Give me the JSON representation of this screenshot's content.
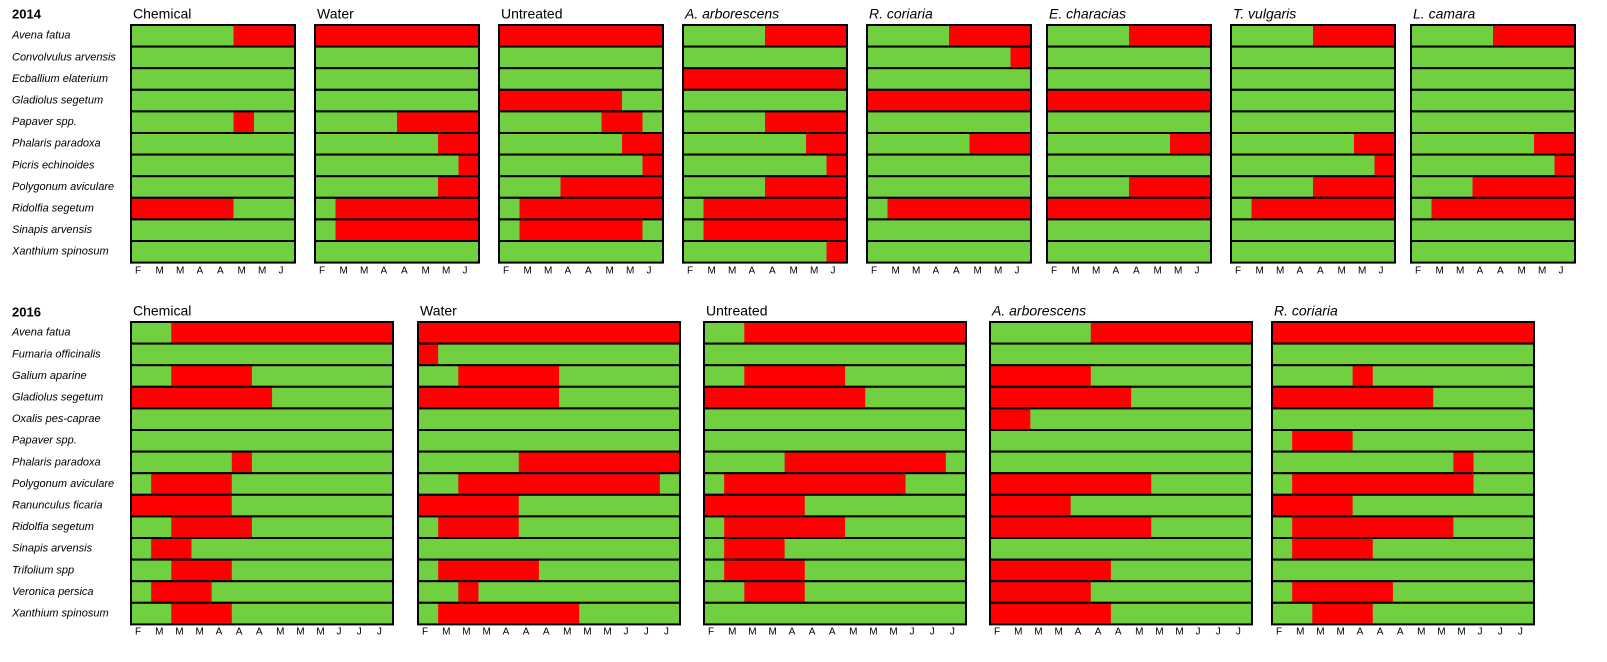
{
  "sections": [
    {
      "year": "2014",
      "species": [
        "Avena fatua",
        "Convolvulus arvensis",
        "Ecballium elaterium",
        "Gladiolus segetum",
        "Papaver spp.",
        "Phalaris paradoxa",
        "Picris echinoides",
        "Polygonum aviculare",
        "Ridolfia segetum",
        "Sinapis arvensis",
        "Xanthium spinosum"
      ],
      "ticks": [
        "F",
        "M",
        "M",
        "A",
        "A",
        "M",
        "M",
        "J"
      ],
      "panels": [
        {
          "name": "Chemical",
          "red": [
            [
              [
                5,
                8
              ]
            ],
            [],
            [],
            [],
            [
              [
                5,
                6
              ]
            ],
            [],
            [],
            [],
            [
              [
                0,
                5
              ]
            ],
            [],
            []
          ]
        },
        {
          "name": "Water",
          "red": [
            [
              [
                0,
                8
              ]
            ],
            [],
            [],
            [],
            [
              [
                4,
                8
              ]
            ],
            [
              [
                6,
                8
              ]
            ],
            [
              [
                7,
                8
              ]
            ],
            [
              [
                6,
                8
              ]
            ],
            [
              [
                1,
                8
              ]
            ],
            [
              [
                1,
                8
              ]
            ],
            []
          ]
        },
        {
          "name": "Untreated",
          "red": [
            [
              [
                0,
                8
              ]
            ],
            [],
            [],
            [
              [
                0,
                6
              ]
            ],
            [
              [
                5,
                7
              ]
            ],
            [
              [
                6,
                8
              ]
            ],
            [
              [
                7,
                8
              ]
            ],
            [
              [
                3,
                8
              ]
            ],
            [
              [
                1,
                8
              ]
            ],
            [
              [
                1,
                7
              ]
            ],
            []
          ]
        },
        {
          "name": "A. arborescens",
          "red": [
            [
              [
                4,
                8
              ]
            ],
            [],
            [
              [
                0,
                8
              ]
            ],
            [],
            [
              [
                4,
                8
              ]
            ],
            [
              [
                6,
                8
              ]
            ],
            [
              [
                7,
                8
              ]
            ],
            [
              [
                4,
                8
              ]
            ],
            [
              [
                1,
                8
              ]
            ],
            [
              [
                1,
                8
              ]
            ],
            [
              [
                7,
                8
              ]
            ]
          ]
        },
        {
          "name": "R. coriaria",
          "red": [
            [
              [
                4,
                8
              ]
            ],
            [
              [
                7,
                8
              ]
            ],
            [],
            [
              [
                0,
                8
              ]
            ],
            [],
            [
              [
                5,
                8
              ]
            ],
            [],
            [],
            [
              [
                1,
                8
              ]
            ],
            [],
            []
          ]
        },
        {
          "name": "E. characias",
          "red": [
            [
              [
                4,
                8
              ]
            ],
            [],
            [],
            [
              [
                0,
                8
              ]
            ],
            [],
            [
              [
                6,
                8
              ]
            ],
            [],
            [
              [
                4,
                8
              ]
            ],
            [
              [
                0,
                8
              ]
            ],
            [],
            []
          ]
        },
        {
          "name": "T. vulgaris",
          "red": [
            [
              [
                4,
                8
              ]
            ],
            [],
            [],
            [],
            [],
            [
              [
                6,
                8
              ]
            ],
            [
              [
                7,
                8
              ]
            ],
            [
              [
                4,
                8
              ]
            ],
            [
              [
                1,
                8
              ]
            ],
            [],
            []
          ]
        },
        {
          "name": "L. camara",
          "red": [
            [
              [
                4,
                8
              ]
            ],
            [],
            [],
            [],
            [],
            [
              [
                6,
                8
              ]
            ],
            [
              [
                7,
                8
              ]
            ],
            [
              [
                3,
                8
              ]
            ],
            [
              [
                1,
                8
              ]
            ],
            [],
            []
          ]
        }
      ]
    },
    {
      "year": "2016",
      "species": [
        "Avena fatua",
        "Fumaria officinalis",
        "Galium aparine",
        "Gladiolus segetum",
        "Oxalis pes-caprae",
        "Papaver spp.",
        "Phalaris paradoxa",
        "Polygonum aviculare",
        "Ranunculus ficaria",
        "Ridolfia segetum",
        "Sinapis arvensis",
        "Trifolium spp",
        "Veronica persica",
        "Xanthium spinosum"
      ],
      "ticks": [
        "F",
        "M",
        "M",
        "M",
        "A",
        "A",
        "A",
        "M",
        "M",
        "M",
        "J",
        "J",
        "J"
      ],
      "panels": [
        {
          "name": "Chemical",
          "red": [
            [
              [
                2,
                13
              ]
            ],
            [],
            [
              [
                2,
                6
              ]
            ],
            [
              [
                0,
                7
              ]
            ],
            [],
            [],
            [
              [
                5,
                6
              ]
            ],
            [
              [
                1,
                5
              ]
            ],
            [
              [
                0,
                5
              ]
            ],
            [
              [
                2,
                6
              ]
            ],
            [
              [
                1,
                3
              ]
            ],
            [
              [
                2,
                5
              ]
            ],
            [
              [
                1,
                4
              ]
            ],
            [
              [
                2,
                5
              ]
            ]
          ]
        },
        {
          "name": "Water",
          "red": [
            [
              [
                0,
                13
              ]
            ],
            [
              [
                0,
                1
              ]
            ],
            [
              [
                2,
                7
              ]
            ],
            [
              [
                0,
                7
              ]
            ],
            [],
            [],
            [
              [
                5,
                13
              ]
            ],
            [
              [
                2,
                12
              ]
            ],
            [
              [
                0,
                5
              ]
            ],
            [
              [
                1,
                5
              ]
            ],
            [],
            [
              [
                1,
                6
              ]
            ],
            [
              [
                2,
                3
              ]
            ],
            [
              [
                1,
                8
              ]
            ]
          ]
        },
        {
          "name": "Untreated",
          "red": [
            [
              [
                2,
                13
              ]
            ],
            [],
            [
              [
                2,
                7
              ]
            ],
            [
              [
                0,
                8
              ]
            ],
            [],
            [],
            [
              [
                4,
                12
              ]
            ],
            [
              [
                1,
                10
              ]
            ],
            [
              [
                0,
                5
              ]
            ],
            [
              [
                1,
                7
              ]
            ],
            [
              [
                1,
                4
              ]
            ],
            [
              [
                1,
                5
              ]
            ],
            [
              [
                2,
                5
              ]
            ],
            []
          ]
        },
        {
          "name": "A. arborescens",
          "red": [
            [
              [
                5,
                13
              ]
            ],
            [],
            [
              [
                0,
                5
              ]
            ],
            [
              [
                0,
                7
              ]
            ],
            [
              [
                0,
                2
              ]
            ],
            [],
            [],
            [
              [
                0,
                8
              ]
            ],
            [
              [
                0,
                4
              ]
            ],
            [
              [
                0,
                8
              ]
            ],
            [],
            [
              [
                0,
                6
              ]
            ],
            [
              [
                0,
                5
              ]
            ],
            [
              [
                0,
                6
              ]
            ]
          ]
        },
        {
          "name": "R. coriaria",
          "red": [
            [
              [
                0,
                13
              ]
            ],
            [],
            [
              [
                4,
                5
              ]
            ],
            [
              [
                0,
                8
              ]
            ],
            [],
            [
              [
                1,
                4
              ]
            ],
            [
              [
                9,
                10
              ]
            ],
            [
              [
                1,
                10
              ]
            ],
            [
              [
                0,
                4
              ]
            ],
            [
              [
                1,
                9
              ]
            ],
            [
              [
                1,
                5
              ]
            ],
            [],
            [
              [
                1,
                6
              ]
            ],
            [
              [
                2,
                5
              ]
            ]
          ]
        }
      ]
    }
  ]
}
